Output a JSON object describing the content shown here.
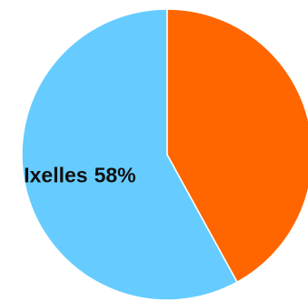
{
  "chart_data": {
    "type": "pie",
    "categories": [
      "Ixelles",
      null
    ],
    "values": [
      58,
      42
    ],
    "value_labels": [
      "58%",
      null
    ],
    "colors": [
      "#66ccff",
      "#ff6600"
    ]
  }
}
